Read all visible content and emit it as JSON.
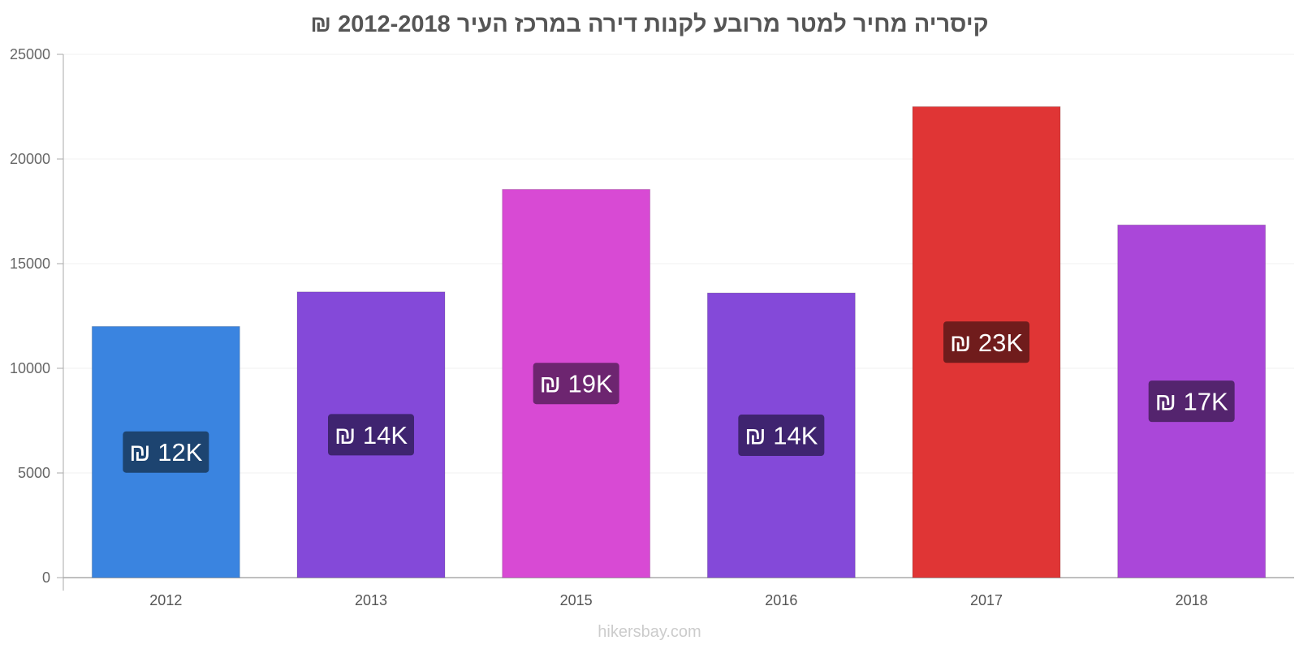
{
  "chart_data": {
    "type": "bar",
    "title": "קיסריה מחיר למטר מרובע לקנות דירה במרכז העיר 2012-2018 ₪",
    "xlabel": "",
    "ylabel": "",
    "ylim": [
      0,
      25000
    ],
    "yticks": [
      "0",
      "5000",
      "10000",
      "15000",
      "20000",
      "25000"
    ],
    "categories": [
      "2012",
      "2013",
      "2015",
      "2016",
      "2017",
      "2018"
    ],
    "values": [
      12000,
      13650,
      18550,
      13600,
      22500,
      16850
    ],
    "value_labels": [
      "₪ 12K",
      "₪ 14K",
      "₪ 19K",
      "₪ 14K",
      "₪ 23K",
      "₪ 17K"
    ],
    "bar_colors": [
      "#3a84e0",
      "#8449d9",
      "#d84ad4",
      "#8449d9",
      "#e03535",
      "#aa47d9"
    ],
    "label_bg_colors": [
      "#1d4470",
      "#3f2470",
      "#6d2570",
      "#3f2470",
      "#701c1c",
      "#54246e"
    ],
    "grid": true,
    "legend": "none"
  },
  "footer": {
    "credit": "hikersbay.com"
  }
}
